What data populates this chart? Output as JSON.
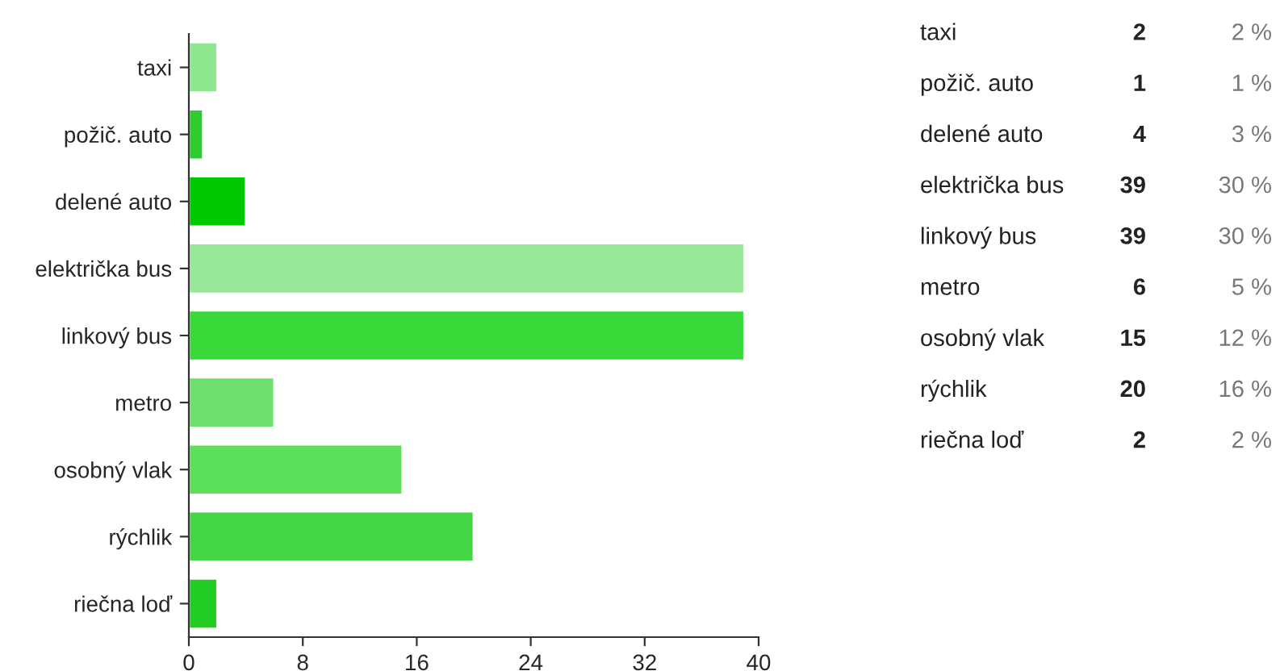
{
  "chart_data": {
    "type": "bar",
    "orientation": "horizontal",
    "categories": [
      "taxi",
      "požič. auto",
      "delené auto",
      "električka bus",
      "linkový bus",
      "metro",
      "osobný vlak",
      "rýchlik",
      "riečna loď"
    ],
    "values": [
      2,
      1,
      4,
      39,
      39,
      6,
      15,
      20,
      2
    ],
    "colors": [
      "#8ee68e",
      "#2ecc2e",
      "#00c800",
      "#99e899",
      "#3ad93a",
      "#6ee06e",
      "#5ce05c",
      "#44d644",
      "#22cc22"
    ],
    "xlim": [
      0,
      40
    ],
    "xticks": [
      0,
      8,
      16,
      24,
      32,
      40
    ],
    "grid": false,
    "legend": false,
    "annotations": [
      "2",
      "2 %",
      "1",
      "1 %",
      "4",
      "3 %",
      "39",
      "30 %",
      "39",
      "30 %",
      "6",
      "5 %",
      "15",
      "12 %",
      "20",
      "16 %",
      "2",
      "2 %"
    ]
  }
}
